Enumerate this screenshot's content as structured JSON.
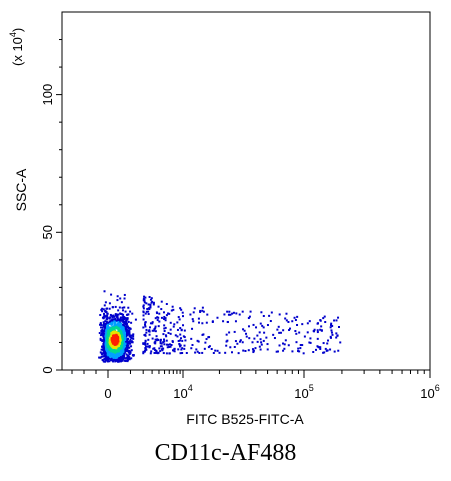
{
  "chart_data": {
    "type": "scatter",
    "subtype": "flow-cytometry density dot plot",
    "title": "",
    "xlabel": "FITC B525-FITC-A",
    "ylabel": "SSC-A",
    "y_multiplier": "(x 10",
    "y_multiplier_exp": "4",
    "y_multiplier_close": ")",
    "xscale": "biexponential",
    "yscale": "linear",
    "xlim": [
      -3000,
      1000000
    ],
    "ylim": [
      0,
      130
    ],
    "x_ticks": [
      {
        "base": "0",
        "exp": ""
      },
      {
        "base": "10",
        "exp": "4"
      },
      {
        "base": "10",
        "exp": "5"
      },
      {
        "base": "10",
        "exp": "6"
      }
    ],
    "y_ticks": [
      "0",
      "50",
      "100"
    ],
    "y_tick_values": [
      0,
      50,
      100
    ],
    "grid": false,
    "colormap": [
      "#0000cc",
      "#00a0ff",
      "#00d890",
      "#e6e600",
      "#ff2000"
    ],
    "populations": [
      {
        "name": "",
        "x_center": 250,
        "y_center": 11,
        "x_spread": 350,
        "y_spread": 5,
        "peak_density": "red"
      },
      {
        "name": "",
        "x_range": [
          2000,
          200000
        ],
        "y_range": [
          6,
          28
        ],
        "density": "sparse"
      }
    ]
  },
  "caption": "CD11c-AF488"
}
